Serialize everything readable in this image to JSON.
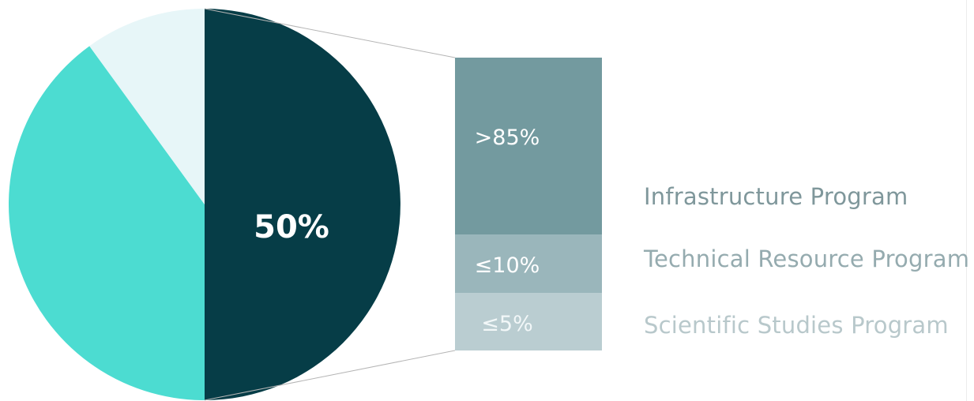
{
  "chart_data": {
    "type": "pie",
    "pie": {
      "slices": [
        {
          "value": 50,
          "label": "50%",
          "color": "#063d47"
        },
        {
          "value": 40,
          "label": "",
          "color": "#4cdcd1"
        },
        {
          "value": 10,
          "label": "",
          "color": "#e7f6f8"
        }
      ]
    },
    "breakdown": {
      "type": "stacked_bar",
      "segments": [
        {
          "name": "Infrastructure Program",
          "value": 85,
          "value_label": ">85%",
          "color": "#739a9f"
        },
        {
          "name": "Technical Resource Program",
          "value": 10,
          "value_label": "≤10%",
          "color": "#9ab6bb"
        },
        {
          "name": "Scientific Studies Program",
          "value": 5,
          "value_label": "≤5%",
          "color": "#bacdd1"
        }
      ]
    },
    "legend_colors": [
      "#7f979b",
      "#95abaf",
      "#b8c8cb"
    ]
  }
}
